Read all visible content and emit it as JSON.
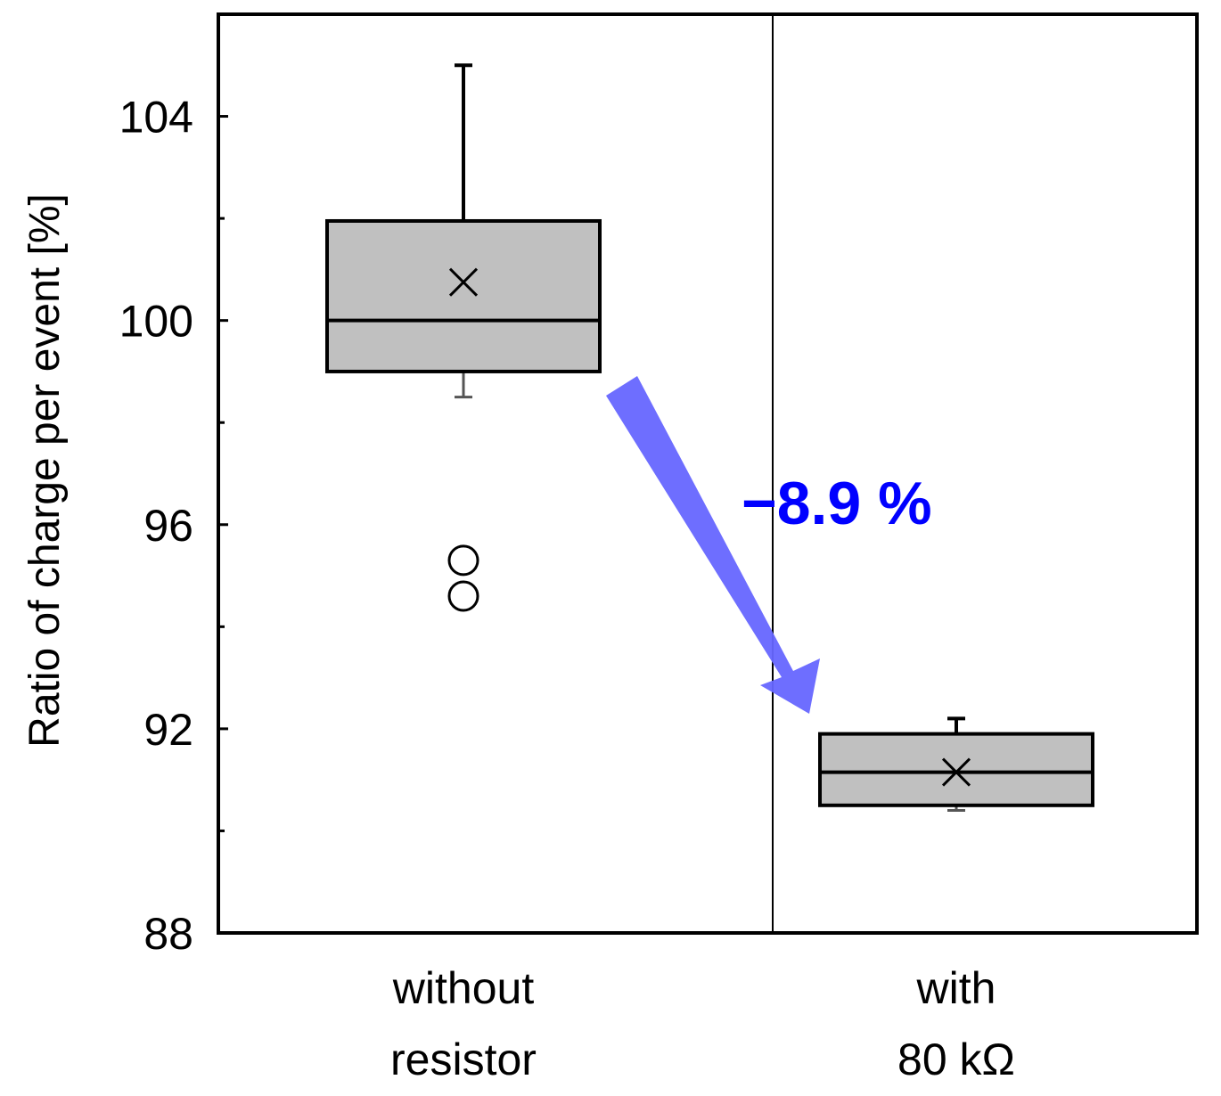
{
  "chart_data": {
    "type": "box",
    "ylabel": "Ratio of charge per event [%]",
    "ylim": [
      88,
      106
    ],
    "yticks_labeled": [
      "88",
      "92",
      "96",
      "100",
      "104"
    ],
    "yticks_minor": [
      90,
      94,
      98,
      102
    ],
    "categories": [
      {
        "line1": "without",
        "line2": "resistor"
      },
      {
        "line1": "with",
        "line2": "80 kΩ"
      }
    ],
    "boxes": [
      {
        "min": 98.5,
        "q1": 99.0,
        "median": 100.0,
        "q3": 101.95,
        "max": 105.0,
        "mean": 100.75,
        "outliers": [
          95.3,
          94.6
        ]
      },
      {
        "min": 90.4,
        "q1": 90.5,
        "median": 91.15,
        "q3": 91.9,
        "max": 92.2,
        "mean": 91.15,
        "outliers": []
      }
    ],
    "annotation": {
      "text": "−8.9 %",
      "color": "#0000ff"
    },
    "colors": {
      "box_fill": "#c0c0c0",
      "arrow": "#6666ff",
      "annotation": "#0000ff"
    },
    "grid": false,
    "legend": "none"
  }
}
